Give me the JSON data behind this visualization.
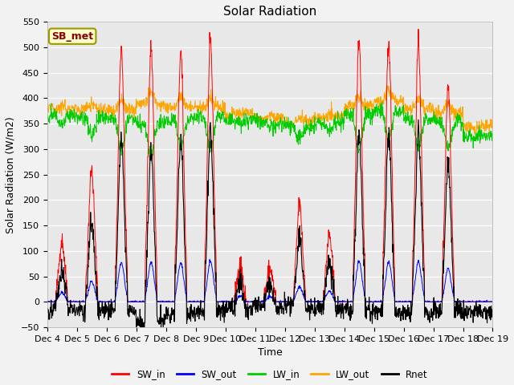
{
  "title": "Solar Radiation",
  "xlabel": "Time",
  "ylabel": "Solar Radiation (W/m2)",
  "ylim": [
    -50,
    550
  ],
  "station_label": "SB_met",
  "plot_bg_color": "#e8e8e8",
  "fig_bg_color": "#f2f2f2",
  "line_colors": {
    "SW_in": "#ff0000",
    "SW_out": "#0000ff",
    "LW_in": "#00cc00",
    "LW_out": "#ffa500",
    "Rnet": "#000000"
  },
  "xtick_labels": [
    "Dec 4",
    "Dec 5",
    "Dec 6",
    "Dec 7",
    "Dec 8",
    "Dec 9",
    "Dec 10",
    "Dec 11",
    "Dec 12",
    "Dec 13",
    "Dec 14",
    "Dec 15",
    "Dec 16",
    "Dec 17",
    "Dec 18",
    "Dec 19"
  ],
  "yticks": [
    -50,
    0,
    50,
    100,
    150,
    200,
    250,
    300,
    350,
    400,
    450,
    500,
    550
  ],
  "title_fontsize": 11,
  "axis_label_fontsize": 9,
  "tick_fontsize": 8,
  "legend_fontsize": 8.5
}
